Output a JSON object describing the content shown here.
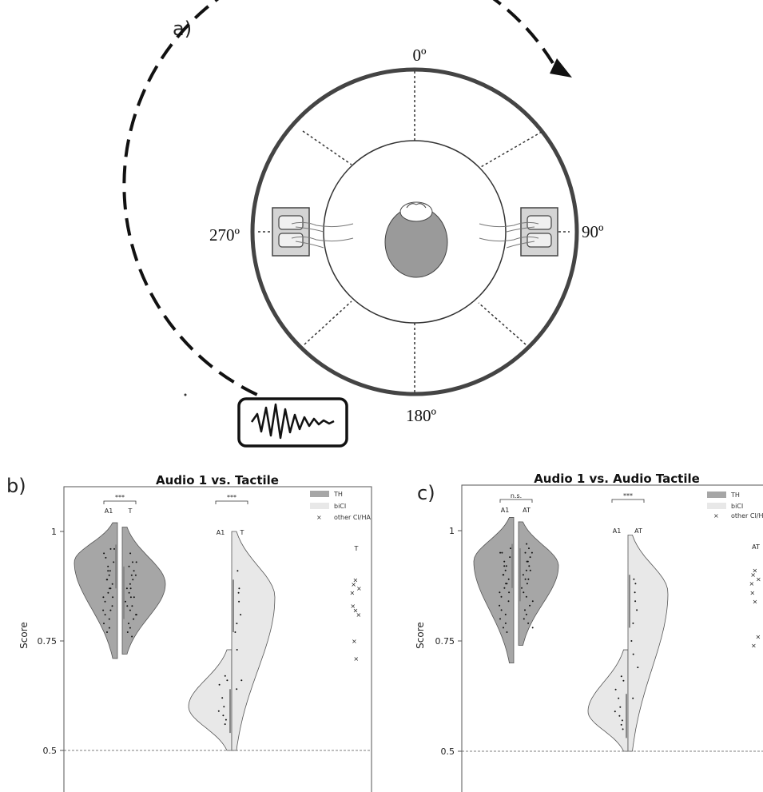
{
  "panel_labels": {
    "a": "a)",
    "b": "b)",
    "c": "c)"
  },
  "diagram": {
    "angles": {
      "top": "0º",
      "right": "90º",
      "bottom": "180º",
      "left": "270º"
    }
  },
  "legend": {
    "th": "TH",
    "bici": "biCI",
    "other": "other CI/HA"
  },
  "colors": {
    "th": "#a6a6a6",
    "bici": "#e8e8e8",
    "points": "#111111",
    "outline": "#555555"
  },
  "chart_data": [
    {
      "type": "violin",
      "title": "Audio 1 vs. Tactile",
      "ylabel": "Score",
      "ylim": [
        0.45,
        1.15
      ],
      "yticks": [
        0.5,
        0.75,
        1
      ],
      "ytick_labels": [
        "0.5",
        "0.75",
        "1"
      ],
      "reference_line": 0.5,
      "groups": [
        {
          "name": "TH",
          "left_label": "A1",
          "right_label": "T",
          "significance": "***",
          "left": {
            "range": [
              0.71,
              1.02
            ],
            "mode": 0.93,
            "points": [
              0.96,
              0.95,
              0.93,
              0.92,
              0.91,
              0.9,
              0.89,
              0.88,
              0.87,
              0.86,
              0.85,
              0.84,
              0.83,
              0.82,
              0.81,
              0.8,
              0.79,
              0.78,
              0.77,
              0.96,
              0.94,
              0.91,
              0.89,
              0.87,
              0.85,
              0.82
            ]
          },
          "right": {
            "range": [
              0.72,
              1.01
            ],
            "mode": 0.88,
            "points": [
              0.95,
              0.93,
              0.92,
              0.91,
              0.9,
              0.89,
              0.88,
              0.87,
              0.86,
              0.85,
              0.84,
              0.83,
              0.82,
              0.81,
              0.8,
              0.79,
              0.78,
              0.77,
              0.76,
              0.93,
              0.9,
              0.87,
              0.85,
              0.83,
              0.81
            ]
          }
        },
        {
          "name": "biCI",
          "left_label": "A1",
          "right_label": "T",
          "significance": "***",
          "left": {
            "range": [
              0.5,
              0.73
            ],
            "mode": 0.6,
            "points": [
              0.67,
              0.66,
              0.65,
              0.62,
              0.6,
              0.59,
              0.58,
              0.57,
              0.56
            ]
          },
          "right": {
            "range": [
              0.5,
              1.0
            ],
            "mode": 0.85,
            "points": [
              0.91,
              0.87,
              0.86,
              0.84,
              0.81,
              0.79,
              0.77,
              0.73,
              0.66,
              0.64
            ]
          }
        }
      ],
      "other": {
        "label": "T",
        "points": [
          0.89,
          0.88,
          0.87,
          0.86,
          0.83,
          0.82,
          0.81,
          0.75,
          0.71
        ]
      }
    },
    {
      "type": "violin",
      "title": "Audio 1 vs. Audio Tactile",
      "ylabel": "Score",
      "ylim": [
        0.45,
        1.15
      ],
      "yticks": [
        0.5,
        0.75,
        1
      ],
      "ytick_labels": [
        "0.5",
        "0.75",
        "1"
      ],
      "reference_line": 0.5,
      "groups": [
        {
          "name": "TH",
          "left_label": "A1",
          "right_label": "AT",
          "significance": "n.s.",
          "left": {
            "range": [
              0.7,
              1.03
            ],
            "mode": 0.93,
            "points": [
              0.96,
              0.95,
              0.94,
              0.93,
              0.92,
              0.91,
              0.9,
              0.89,
              0.88,
              0.87,
              0.86,
              0.85,
              0.84,
              0.83,
              0.82,
              0.81,
              0.8,
              0.79,
              0.78,
              0.77,
              0.95,
              0.92,
              0.9,
              0.88,
              0.86
            ]
          },
          "right": {
            "range": [
              0.74,
              1.02
            ],
            "mode": 0.92,
            "points": [
              0.97,
              0.96,
              0.95,
              0.94,
              0.93,
              0.92,
              0.91,
              0.9,
              0.89,
              0.88,
              0.87,
              0.86,
              0.85,
              0.84,
              0.83,
              0.82,
              0.81,
              0.8,
              0.79,
              0.78,
              0.95,
              0.93,
              0.91,
              0.89
            ]
          }
        },
        {
          "name": "biCI",
          "left_label": "A1",
          "right_label": "AT",
          "significance": "***",
          "left": {
            "range": [
              0.5,
              0.73
            ],
            "mode": 0.59,
            "points": [
              0.67,
              0.66,
              0.64,
              0.62,
              0.6,
              0.59,
              0.58,
              0.57,
              0.56,
              0.55
            ]
          },
          "right": {
            "range": [
              0.5,
              0.99
            ],
            "mode": 0.86,
            "points": [
              0.89,
              0.88,
              0.86,
              0.84,
              0.82,
              0.79,
              0.75,
              0.72,
              0.69,
              0.62
            ]
          }
        }
      ],
      "other": {
        "label": "AT",
        "points": [
          0.91,
          0.9,
          0.89,
          0.88,
          0.86,
          0.84,
          0.76,
          0.74
        ]
      }
    }
  ]
}
